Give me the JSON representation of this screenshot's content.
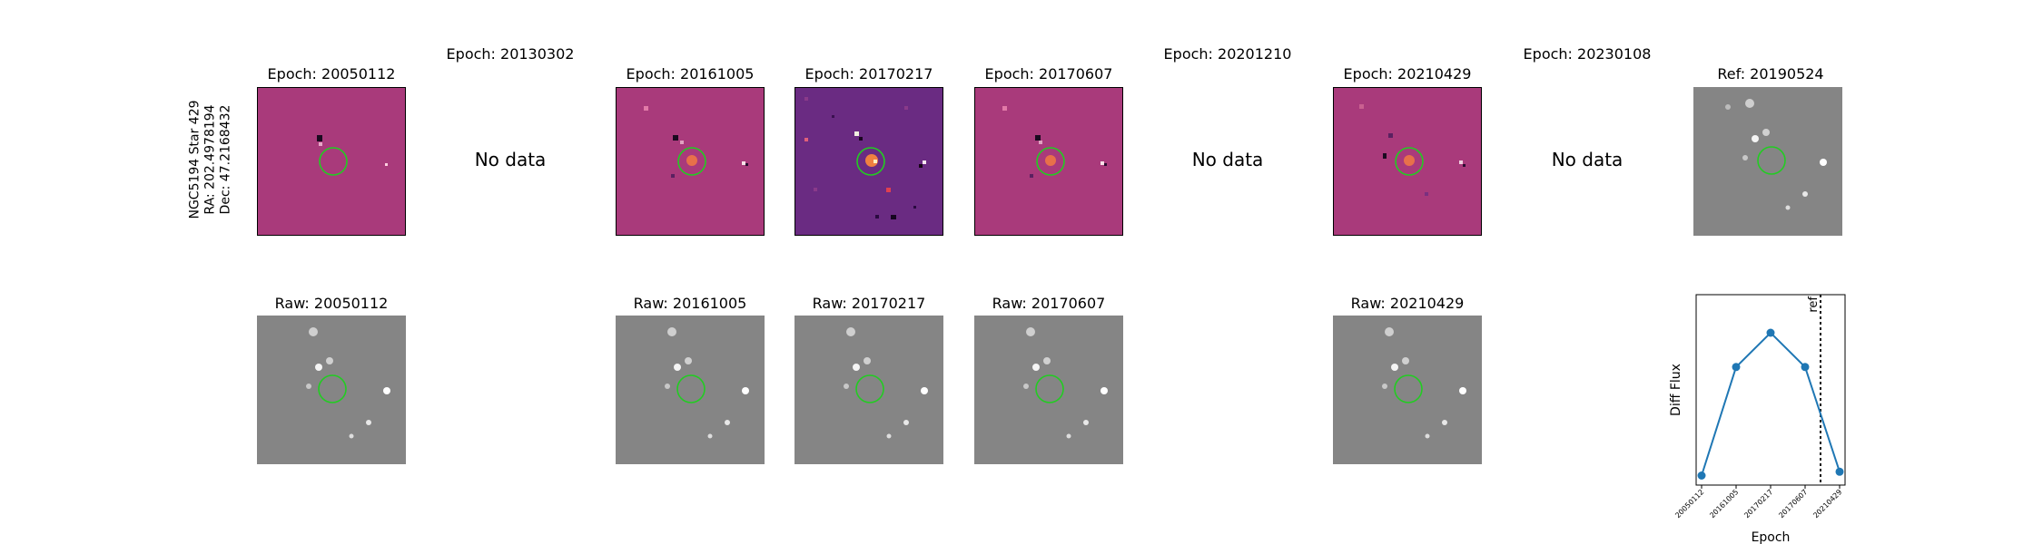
{
  "target": {
    "label_lines": [
      "NGC5194 Star 429",
      "RA: 202.4978194",
      "Dec: 47.2168432"
    ]
  },
  "no_data_text": "No data",
  "epochs": [
    {
      "title": "Epoch: 20050112",
      "raw_title": "Raw: 20050112",
      "has_data": true
    },
    {
      "title": "Epoch: 20130302",
      "has_data": false
    },
    {
      "title": "Epoch: 20161005",
      "raw_title": "Raw: 20161005",
      "has_data": true
    },
    {
      "title": "Epoch: 20170217",
      "raw_title": "Raw: 20170217",
      "has_data": true
    },
    {
      "title": "Epoch: 20170607",
      "raw_title": "Raw: 20170607",
      "has_data": true
    },
    {
      "title": "Epoch: 20201210",
      "has_data": false
    },
    {
      "title": "Epoch: 20210429",
      "raw_title": "Raw: 20210429",
      "has_data": true
    },
    {
      "title": "Epoch: 20230108",
      "has_data": false
    }
  ],
  "reference": {
    "title": "Ref: 20190524"
  },
  "colors": {
    "aperture": "#22cc22",
    "series": "#1f77b4",
    "diff_bg": "#a93a7b",
    "noisy_bg": "#6a2b82",
    "raw_bg": "#858585"
  },
  "chart_data": {
    "type": "line",
    "xlabel": "Epoch",
    "ylabel": "Diff Flux",
    "categories": [
      "20050112",
      "20161005",
      "20170217",
      "20170607",
      "20210429"
    ],
    "values": [
      0.05,
      0.62,
      0.8,
      0.62,
      0.07
    ],
    "ref_line": {
      "label": "ref",
      "position_between": [
        "20170607",
        "20210429"
      ]
    },
    "y_ticks_shown": false,
    "grid": false
  }
}
